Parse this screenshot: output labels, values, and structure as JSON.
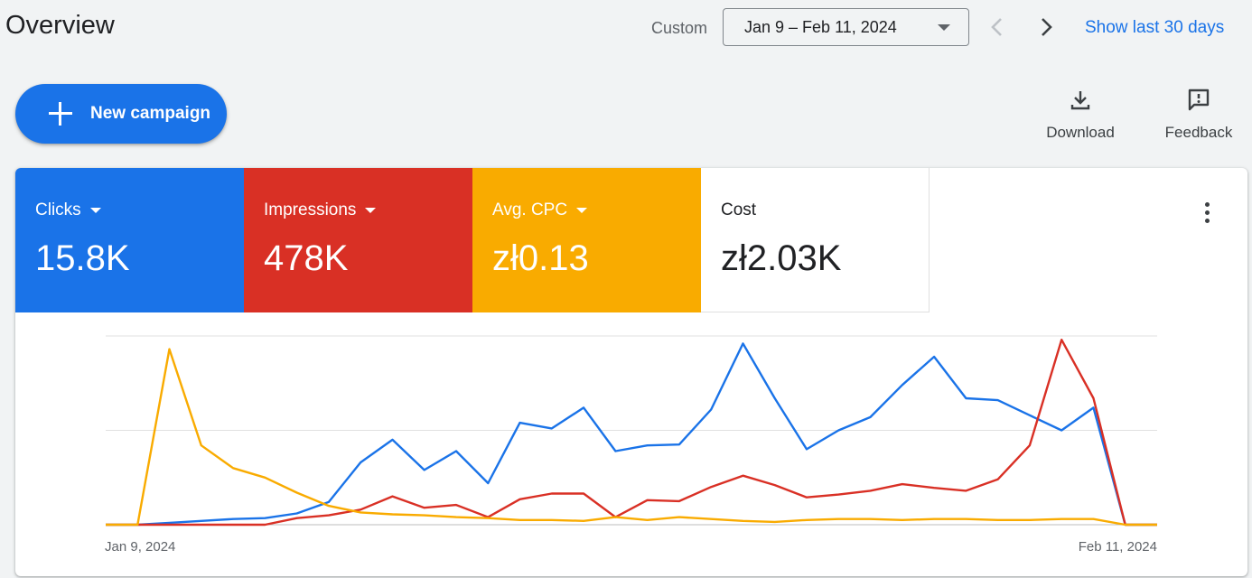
{
  "header": {
    "title": "Overview",
    "date_range_label": "Custom",
    "date_range_value": "Jan 9 – Feb 11, 2024",
    "show_last": "Show last 30 days"
  },
  "toolbar": {
    "new_campaign": "New campaign",
    "download": "Download",
    "feedback": "Feedback"
  },
  "metrics": [
    {
      "label": "Clicks",
      "value": "15.8K",
      "color": "#1a73e8",
      "dropdown": true
    },
    {
      "label": "Impressions",
      "value": "478K",
      "color": "#d93025",
      "dropdown": true
    },
    {
      "label": "Avg. CPC",
      "value": "zł0.13",
      "color": "#f9ab00",
      "dropdown": true
    },
    {
      "label": "Cost",
      "value": "zł2.03K",
      "color": "#ffffff",
      "dropdown": false
    }
  ],
  "chart_data": {
    "type": "line",
    "x_start_label": "Jan 9, 2024",
    "x_end_label": "Feb 11, 2024",
    "grid": true,
    "series": [
      {
        "color": "#1a73e8",
        "values": [
          0,
          0,
          1,
          2,
          3,
          3.5,
          6,
          12,
          33,
          45,
          29,
          39,
          22,
          54,
          51,
          62,
          39,
          42,
          42.5,
          61,
          96,
          67,
          40,
          50,
          57,
          74,
          89,
          67,
          66,
          58,
          50,
          62,
          0,
          0
        ]
      },
      {
        "color": "#d93025",
        "values": [
          0,
          0,
          0,
          0,
          0,
          0,
          3.5,
          5,
          8,
          15,
          9,
          10.5,
          4,
          13.5,
          16.5,
          16.5,
          4,
          13,
          12.5,
          20,
          26,
          21,
          14.5,
          16,
          18,
          21.5,
          19.5,
          18,
          24,
          42,
          98,
          67,
          0,
          0
        ]
      },
      {
        "color": "#f9ab00",
        "values": [
          0,
          0,
          93,
          42,
          30,
          25,
          17,
          10,
          6.5,
          5.5,
          5,
          4,
          3.5,
          2.5,
          2.5,
          2,
          4,
          2.5,
          4,
          3,
          2,
          1.5,
          2.5,
          3,
          3,
          2.5,
          3,
          3,
          2.5,
          2.5,
          3,
          3,
          0,
          0
        ]
      }
    ]
  }
}
